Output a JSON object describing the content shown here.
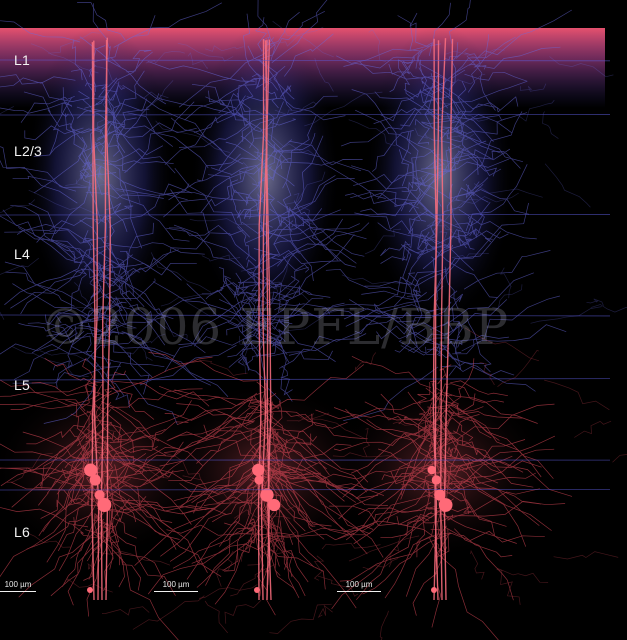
{
  "image": {
    "layer_labels": [
      "L1",
      "L2/3",
      "L4",
      "L5",
      "L6"
    ],
    "scale_bars": [
      "100 µm",
      "100 µm",
      "100 µm"
    ],
    "watermark": "©2006 EPFL/BBP",
    "colors": {
      "background": "#000000",
      "axons_dendrites_blue": "#6f6fe6",
      "pyramidal_red": "#f05060",
      "highlight_white": "#e8e8ff"
    }
  }
}
